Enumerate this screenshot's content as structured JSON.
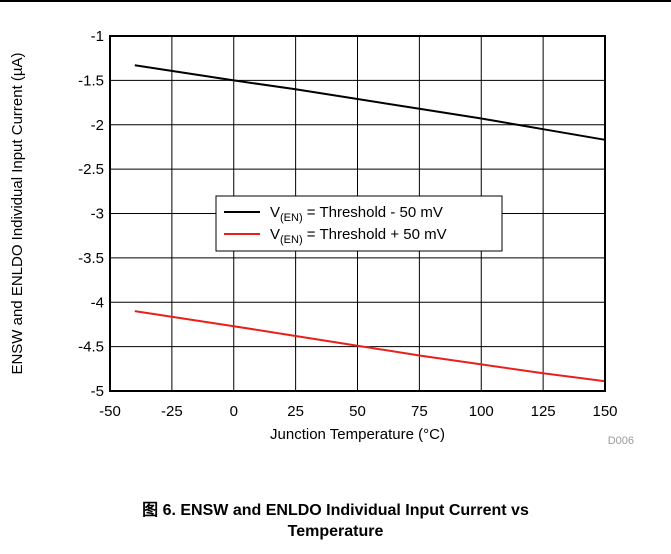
{
  "figure": {
    "caption_line1": "图 6. ENSW and ENLDO Individual Input Current vs",
    "caption_line2": "Temperature",
    "figure_id": "D006"
  },
  "chart_data": {
    "type": "line",
    "xlabel": "Junction Temperature (°C)",
    "ylabel": "ENSW and ENLDO Individual Input Current (µA)",
    "xlim": [
      -50,
      150
    ],
    "ylim": [
      -5,
      -1
    ],
    "xticks": [
      "-50",
      "-25",
      "0",
      "25",
      "50",
      "75",
      "100",
      "125",
      "150"
    ],
    "yticks": [
      "-1",
      "-1.5",
      "-2",
      "-2.5",
      "-3",
      "-3.5",
      "-4",
      "-4.5",
      "-5"
    ],
    "grid": true,
    "legend_position": "center",
    "series": [
      {
        "name": "V(EN) = Threshold - 50 mV",
        "name_main": "V",
        "name_sub": "(EN)",
        "name_rest": " = Threshold - 50 mV",
        "color": "#000000",
        "x": [
          -40,
          0,
          25,
          50,
          75,
          100,
          125,
          150
        ],
        "y": [
          -1.33,
          -1.5,
          -1.6,
          -1.71,
          -1.82,
          -1.93,
          -2.05,
          -2.17
        ]
      },
      {
        "name": "V(EN) = Threshold + 50 mV",
        "name_main": "V",
        "name_sub": "(EN)",
        "name_rest": " = Threshold + 50 mV",
        "color": "#e8201a",
        "x": [
          -40,
          0,
          25,
          50,
          75,
          100,
          125,
          150
        ],
        "y": [
          -4.1,
          -4.27,
          -4.38,
          -4.49,
          -4.6,
          -4.7,
          -4.8,
          -4.89
        ]
      }
    ]
  }
}
